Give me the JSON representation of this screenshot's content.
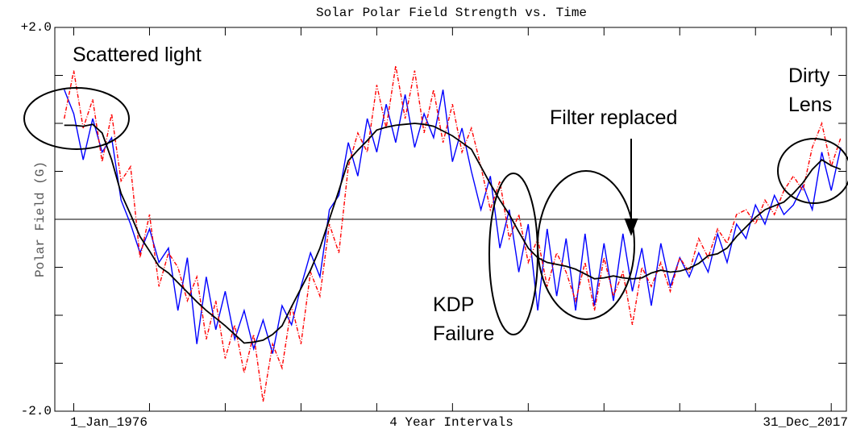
{
  "chart_data": {
    "type": "line",
    "title": "Solar Polar Field Strength vs. Time",
    "ylabel": "Polar Field (G)",
    "xlabel": "4 Year Intervals",
    "x_start_label": "1_Jan_1976",
    "x_end_label": "31_Dec_2017",
    "annotations": [
      "Scattered light",
      "Filter replaced",
      "KDP Failure",
      "Dirty Lens"
    ],
    "xlim": [
      1975,
      2016.8
    ],
    "xticks": [
      1976,
      1980,
      1984,
      1988,
      1992,
      1996,
      2000,
      2004,
      2008,
      2012,
      2016
    ],
    "ylim": [
      -2,
      2
    ],
    "yticks": [
      {
        "value": -2,
        "label": "-2.0"
      },
      {
        "value": -1.5,
        "label": null
      },
      {
        "value": -1,
        "label": null
      },
      {
        "value": -0.5,
        "label": null
      },
      {
        "value": 0,
        "label": null
      },
      {
        "value": 0.5,
        "label": null
      },
      {
        "value": 1,
        "label": null
      },
      {
        "value": 1.5,
        "label": null
      },
      {
        "value": 2,
        "label": "+2.0"
      }
    ],
    "reference_line": 0,
    "x": [
      1975.5,
      1976,
      1976.5,
      1977,
      1977.5,
      1978,
      1978.5,
      1979,
      1979.5,
      1980,
      1980.5,
      1981,
      1981.5,
      1982,
      1982.5,
      1983,
      1983.5,
      1984,
      1984.5,
      1985,
      1985.5,
      1986,
      1986.5,
      1987,
      1987.5,
      1988,
      1988.5,
      1989,
      1989.5,
      1990,
      1990.5,
      1991,
      1991.5,
      1992,
      1992.5,
      1993,
      1993.5,
      1994,
      1994.5,
      1995,
      1995.5,
      1996,
      1996.5,
      1997,
      1997.5,
      1998,
      1998.5,
      1999,
      1999.5,
      2000,
      2000.5,
      2001,
      2001.5,
      2002,
      2002.5,
      2003,
      2003.5,
      2004,
      2004.5,
      2005,
      2005.5,
      2006,
      2006.5,
      2007,
      2007.5,
      2008,
      2008.5,
      2009,
      2009.5,
      2010,
      2010.5,
      2011,
      2011.5,
      2012,
      2012.5,
      2013,
      2013.5,
      2014,
      2014.5,
      2015,
      2015.5,
      2016,
      2016.5
    ],
    "series": [
      {
        "color": "#0000ff",
        "dash": false,
        "values": [
          1.35,
          1.1,
          0.62,
          1.05,
          0.7,
          0.85,
          0.2,
          -0.05,
          -0.35,
          -0.1,
          -0.45,
          -0.3,
          -0.95,
          -0.4,
          -1.3,
          -0.6,
          -1.15,
          -0.75,
          -1.25,
          -0.95,
          -1.35,
          -1.05,
          -1.4,
          -0.9,
          -1.1,
          -0.7,
          -0.35,
          -0.6,
          0.1,
          0.25,
          0.8,
          0.45,
          1.05,
          0.7,
          1.2,
          0.8,
          1.3,
          0.75,
          1.1,
          0.85,
          1.35,
          0.6,
          0.95,
          0.5,
          0.1,
          0.45,
          -0.3,
          0.1,
          -0.55,
          -0.05,
          -0.95,
          -0.1,
          -0.8,
          -0.2,
          -0.95,
          -0.15,
          -0.9,
          -0.25,
          -0.85,
          -0.15,
          -0.75,
          -0.3,
          -0.9,
          -0.25,
          -0.7,
          -0.4,
          -0.6,
          -0.35,
          -0.55,
          -0.15,
          -0.45,
          -0.05,
          -0.2,
          0.15,
          -0.05,
          0.25,
          0.05,
          0.15,
          0.35,
          0.1,
          0.7,
          0.3,
          0.75
        ]
      },
      {
        "color": "#ff0000",
        "dash": true,
        "values": [
          1.05,
          1.55,
          0.95,
          1.25,
          0.6,
          1.1,
          0.4,
          0.55,
          -0.4,
          0.05,
          -0.7,
          -0.35,
          -0.5,
          -0.85,
          -0.6,
          -1.25,
          -0.85,
          -1.45,
          -1.1,
          -1.6,
          -1.2,
          -1.9,
          -1.3,
          -1.55,
          -0.9,
          -1.3,
          -0.55,
          -0.8,
          -0.05,
          -0.35,
          0.55,
          0.9,
          0.7,
          1.4,
          0.95,
          1.6,
          1.05,
          1.55,
          0.9,
          1.35,
          0.8,
          1.2,
          0.7,
          0.95,
          0.55,
          0.1,
          0.4,
          -0.2,
          0.05,
          -0.45,
          -0.2,
          -0.7,
          -0.35,
          -0.55,
          -0.85,
          -0.45,
          -0.95,
          -0.4,
          -0.8,
          -0.55,
          -1.1,
          -0.5,
          -0.7,
          -0.45,
          -0.75,
          -0.4,
          -0.55,
          -0.2,
          -0.4,
          -0.1,
          -0.25,
          0.05,
          0.1,
          -0.05,
          0.2,
          0.05,
          0.3,
          0.45,
          0.3,
          0.75,
          1.0,
          0.55,
          0.85
        ]
      },
      {
        "color": "#000000",
        "dash": false,
        "values": [
          0.98,
          0.98,
          0.97,
          0.99,
          0.9,
          0.62,
          0.27,
          0.05,
          -0.18,
          -0.33,
          -0.49,
          -0.56,
          -0.66,
          -0.76,
          -0.86,
          -0.95,
          -1.03,
          -1.11,
          -1.2,
          -1.29,
          -1.28,
          -1.26,
          -1.2,
          -1.11,
          -0.91,
          -0.72,
          -0.53,
          -0.3,
          0.0,
          0.3,
          0.61,
          0.72,
          0.82,
          0.93,
          0.96,
          0.98,
          0.99,
          1.0,
          0.99,
          0.97,
          0.92,
          0.87,
          0.8,
          0.73,
          0.55,
          0.37,
          0.2,
          0.05,
          -0.13,
          -0.3,
          -0.4,
          -0.45,
          -0.47,
          -0.49,
          -0.52,
          -0.57,
          -0.62,
          -0.61,
          -0.59,
          -0.61,
          -0.62,
          -0.61,
          -0.56,
          -0.53,
          -0.55,
          -0.54,
          -0.51,
          -0.46,
          -0.38,
          -0.36,
          -0.3,
          -0.18,
          -0.08,
          0.02,
          0.1,
          0.14,
          0.18,
          0.27,
          0.38,
          0.52,
          0.62,
          0.56,
          0.52
        ]
      }
    ]
  }
}
